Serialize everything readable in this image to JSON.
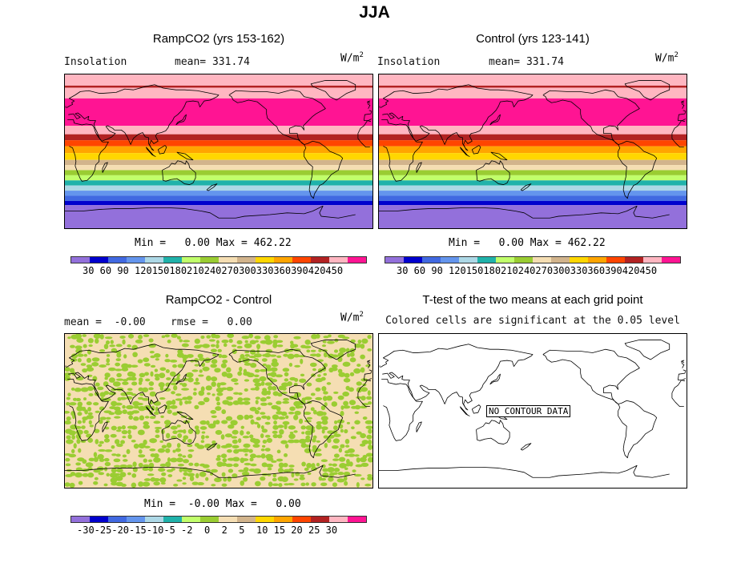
{
  "title": "JJA",
  "panels": {
    "ramp": {
      "title": "RampCO2 (yrs 153-162)",
      "left_label": "Insolation",
      "mean": "mean= 331.74",
      "units": "W/m",
      "units_exp": "2",
      "minmax": "Min =   0.00 Max = 462.22"
    },
    "control": {
      "title": "Control (yrs 123-141)",
      "left_label": "Insolation",
      "mean": "mean= 331.74",
      "units": "W/m",
      "units_exp": "2",
      "minmax": "Min =   0.00 Max = 462.22"
    },
    "diff": {
      "title": "RampCO2 - Control",
      "stats": "mean =  -0.00    rmse =   0.00",
      "units": "W/m",
      "units_exp": "2",
      "minmax": "Min =  -0.00 Max =   0.00"
    },
    "ttest": {
      "title": "T-test of the two means at each grid point",
      "subtitle": "Colored cells are significant at the 0.05 level",
      "no_data": "NO CONTOUR DATA"
    }
  },
  "colorbars": {
    "insolation": {
      "colors": [
        "#9370db",
        "#0000cd",
        "#4169e1",
        "#6495ed",
        "#add8e6",
        "#20b2aa",
        "#c1ff6b",
        "#9acd32",
        "#f5deb3",
        "#d2b48c",
        "#ffd700",
        "#ffa500",
        "#ff4500",
        "#b22222",
        "#ffb6c1",
        "#ff1493"
      ],
      "labels": "30 60 90 120150180210240270300330360390420450"
    },
    "diff": {
      "colors": [
        "#9370db",
        "#0000cd",
        "#4169e1",
        "#6495ed",
        "#add8e6",
        "#20b2aa",
        "#c1ff6b",
        "#9acd32",
        "#f5deb3",
        "#d2b48c",
        "#ffd700",
        "#ffa500",
        "#ff4500",
        "#b22222",
        "#ffb6c1",
        "#ff1493"
      ],
      "labels": "-30-25-20-15-10-5 -2  0  2  5  10 15 20 25 30"
    }
  },
  "insolation_bands": [
    {
      "color": "#ffb6c1",
      "lat_top": 90,
      "lat_bottom": 62
    },
    {
      "color": "#ff1493",
      "lat_top": 62,
      "lat_bottom": 30
    },
    {
      "color": "#ffb6c1",
      "lat_top": 30,
      "lat_bottom": 20
    },
    {
      "color": "#b22222",
      "lat_top": 20,
      "lat_bottom": 13
    },
    {
      "color": "#ff4500",
      "lat_top": 13,
      "lat_bottom": 6
    },
    {
      "color": "#ffa500",
      "lat_top": 6,
      "lat_bottom": -2
    },
    {
      "color": "#ffd700",
      "lat_top": -2,
      "lat_bottom": -10
    },
    {
      "color": "#d2b48c",
      "lat_top": -10,
      "lat_bottom": -16
    },
    {
      "color": "#f5deb3",
      "lat_top": -16,
      "lat_bottom": -22
    },
    {
      "color": "#9acd32",
      "lat_top": -22,
      "lat_bottom": -28
    },
    {
      "color": "#c1ff6b",
      "lat_top": -28,
      "lat_bottom": -34
    },
    {
      "color": "#20b2aa",
      "lat_top": -34,
      "lat_bottom": -40
    },
    {
      "color": "#add8e6",
      "lat_top": -40,
      "lat_bottom": -46
    },
    {
      "color": "#6495ed",
      "lat_top": -46,
      "lat_bottom": -52
    },
    {
      "color": "#4169e1",
      "lat_top": -52,
      "lat_bottom": -58
    },
    {
      "color": "#0000cd",
      "lat_top": -58,
      "lat_bottom": -63
    },
    {
      "color": "#9370db",
      "lat_top": -63,
      "lat_bottom": -90
    }
  ],
  "insolation_line_lat": 76,
  "diff_colors": {
    "background": "#f5deb3",
    "patches": "#9acd32"
  }
}
